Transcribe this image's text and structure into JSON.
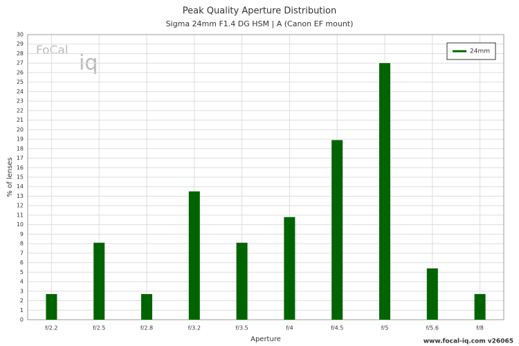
{
  "chart_data": {
    "type": "bar",
    "title": "Peak Quality Aperture Distribution",
    "subtitle": "Sigma 24mm F1.4 DG HSM | A (Canon EF mount)",
    "x_label": "Aperture",
    "y_label": "% of lenses",
    "categories": [
      "f/2.2",
      "f/2.5",
      "f/2.8",
      "f/3.2",
      "f/3.5",
      "f/4",
      "f/4.5",
      "f/5",
      "f/5.6",
      "f/8"
    ],
    "series": [
      {
        "name": "24mm",
        "color": "#006400",
        "values": [
          2.7,
          8.1,
          2.7,
          13.5,
          8.1,
          10.8,
          18.9,
          27,
          5.4,
          2.7
        ]
      }
    ],
    "ylim": [
      0,
      30
    ],
    "yticks": [
      0,
      1,
      2,
      3,
      4,
      5,
      6,
      7,
      8,
      9,
      10,
      11,
      12,
      13,
      14,
      15,
      16,
      17,
      18,
      19,
      20,
      21,
      22,
      23,
      24,
      25,
      26,
      27,
      28,
      29,
      30
    ],
    "grid": true,
    "legend": "top-right",
    "logo": [
      "FoCal",
      "iq"
    ],
    "footer": "www.focal-iq.com  v26065"
  }
}
